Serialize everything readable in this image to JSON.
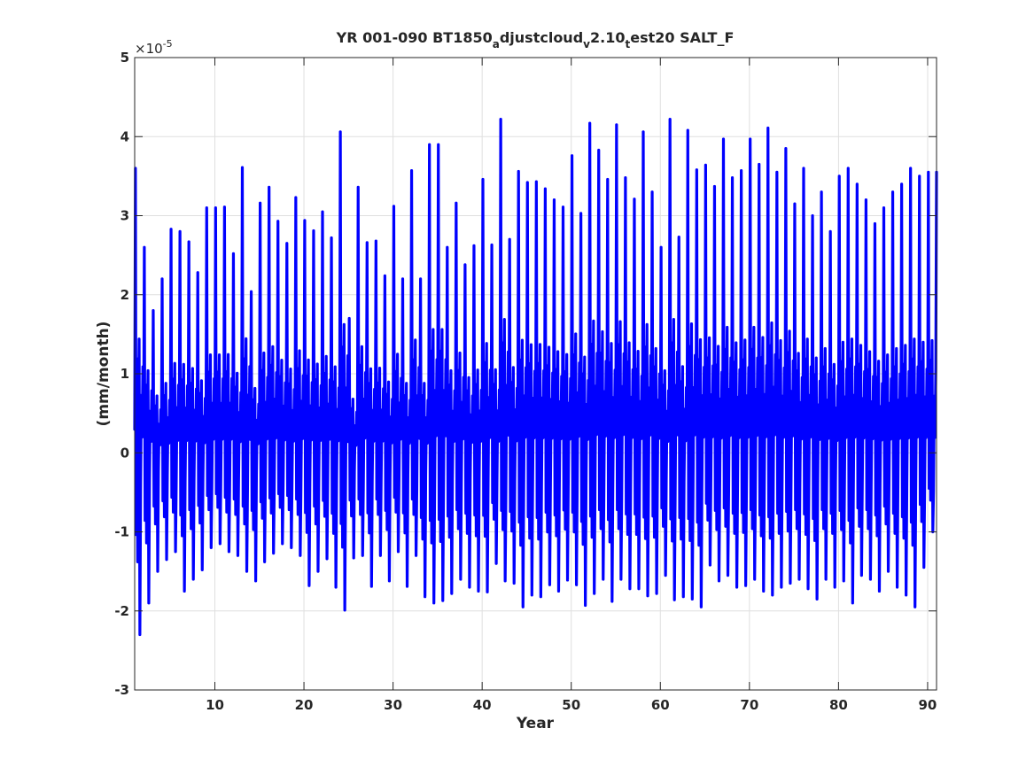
{
  "chart_data": {
    "type": "line",
    "title": {
      "parts": [
        {
          "text": "YR 001-090 BT1850",
          "sub": false
        },
        {
          "text": "a",
          "sub": true
        },
        {
          "text": "djustcloud",
          "sub": false
        },
        {
          "text": "v",
          "sub": true
        },
        {
          "text": "2.10",
          "sub": false
        },
        {
          "text": "t",
          "sub": true
        },
        {
          "text": "est20 SALT_F",
          "sub": false
        }
      ]
    },
    "xlabel": "Year",
    "ylabel": "(mm/month)",
    "exponent_prefix": "×10",
    "exponent_power": "-5",
    "xlim": [
      1,
      91
    ],
    "ylim": [
      -3,
      5
    ],
    "xticks": [
      10,
      20,
      30,
      40,
      50,
      60,
      70,
      80,
      90
    ],
    "yticks": [
      -3,
      -2,
      -1,
      0,
      1,
      2,
      3,
      4,
      5
    ],
    "grid": true,
    "series": [
      {
        "color": "#0000ff",
        "line_width": "thick",
        "sampling": "monthly",
        "x_start": 1,
        "x_step": 0.0833,
        "annual_peaks": [
          3.6,
          2.6,
          1.8,
          2.2,
          2.83,
          2.8,
          2.67,
          2.28,
          3.1,
          3.1,
          3.11,
          2.52,
          3.61,
          2.04,
          3.16,
          3.36,
          2.93,
          2.65,
          3.23,
          2.94,
          2.81,
          3.05,
          2.72,
          4.06,
          1.7,
          3.36,
          2.66,
          2.68,
          2.24,
          3.12,
          2.2,
          3.57,
          2.2,
          3.9,
          3.9,
          2.6,
          3.16,
          2.38,
          2.62,
          3.46,
          2.63,
          4.22,
          2.7,
          3.56,
          3.42,
          3.43,
          3.34,
          3.2,
          3.11,
          3.76,
          3.03,
          4.17,
          3.83,
          3.46,
          4.15,
          3.48,
          3.21,
          4.06,
          3.3,
          2.6,
          4.22,
          2.73,
          4.08,
          3.58,
          3.64,
          3.37,
          3.97,
          3.48,
          3.57,
          3.97,
          3.65,
          4.11,
          3.55,
          3.85,
          3.15,
          3.6,
          3.0,
          3.3,
          2.8,
          3.5,
          3.6,
          3.4,
          3.2,
          2.9,
          3.1,
          3.3,
          3.4,
          3.6,
          3.5,
          3.55
        ],
        "annual_troughs": [
          -2.3,
          -1.9,
          -1.5,
          -1.35,
          -1.25,
          -1.75,
          -1.6,
          -1.48,
          -1.2,
          -1.15,
          -1.25,
          -1.3,
          -1.5,
          -1.62,
          -1.38,
          -1.27,
          -1.15,
          -1.2,
          -1.3,
          -1.68,
          -1.5,
          -1.34,
          -1.7,
          -1.99,
          -1.33,
          -1.3,
          -1.69,
          -1.3,
          -1.62,
          -1.25,
          -1.69,
          -1.3,
          -1.82,
          -1.9,
          -1.87,
          -1.78,
          -1.6,
          -1.7,
          -1.75,
          -1.76,
          -1.4,
          -1.62,
          -1.65,
          -1.95,
          -1.8,
          -1.82,
          -1.67,
          -1.75,
          -1.61,
          -1.67,
          -1.93,
          -1.78,
          -1.6,
          -1.88,
          -1.6,
          -1.72,
          -1.72,
          -1.81,
          -1.78,
          -1.55,
          -1.86,
          -1.82,
          -1.85,
          -1.95,
          -1.42,
          -1.62,
          -1.55,
          -1.7,
          -1.68,
          -1.6,
          -1.75,
          -1.8,
          -1.7,
          -1.65,
          -1.6,
          -1.72,
          -1.85,
          -1.6,
          -1.7,
          -1.62,
          -1.9,
          -1.55,
          -1.6,
          -1.75,
          -1.5,
          -1.7,
          -1.8,
          -1.95,
          -1.45,
          -1.0
        ]
      }
    ]
  }
}
